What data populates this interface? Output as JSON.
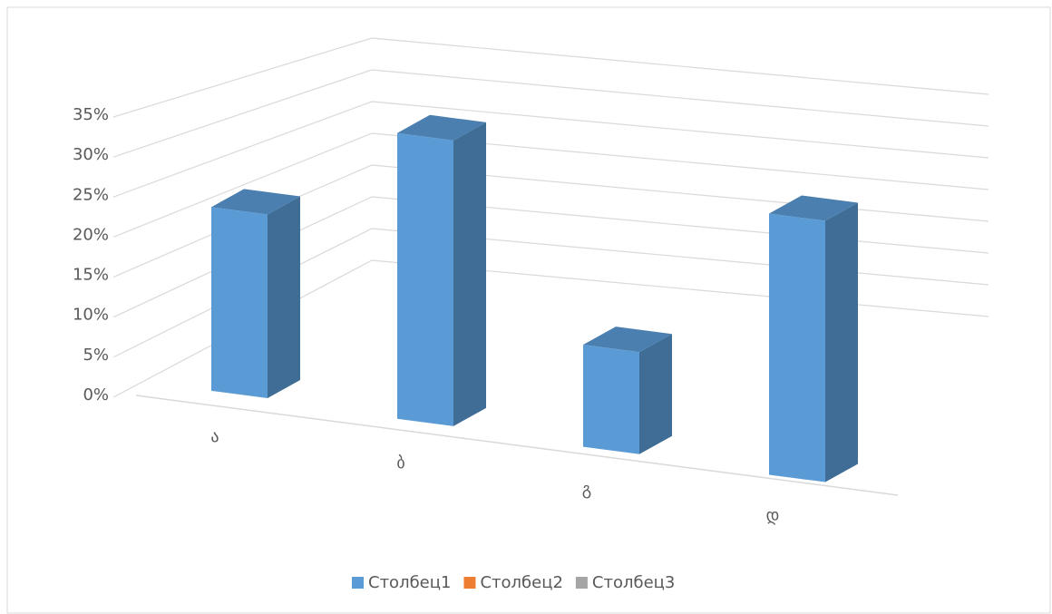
{
  "chart_data": {
    "type": "bar3d",
    "categories": [
      "ა",
      "ბ",
      "გ",
      "დ"
    ],
    "series": [
      {
        "name": "Столбец1",
        "color": "#5b9bd5",
        "values": [
          22.5,
          35,
          12.5,
          32
        ]
      },
      {
        "name": "Столбец2",
        "color": "#ed7d31",
        "values": [
          null,
          null,
          null,
          null
        ]
      },
      {
        "name": "Столбец3",
        "color": "#a5a5a5",
        "values": [
          null,
          null,
          null,
          null
        ]
      }
    ],
    "ylim": [
      0,
      35
    ],
    "yticks": [
      {
        "value": 0,
        "label": "0%"
      },
      {
        "value": 5,
        "label": "5%"
      },
      {
        "value": 10,
        "label": "10%"
      },
      {
        "value": 15,
        "label": "15%"
      },
      {
        "value": 20,
        "label": "20%"
      },
      {
        "value": 25,
        "label": "25%"
      },
      {
        "value": 30,
        "label": "30%"
      },
      {
        "value": 35,
        "label": "35%"
      }
    ],
    "grid": true,
    "legend": "bottom"
  }
}
